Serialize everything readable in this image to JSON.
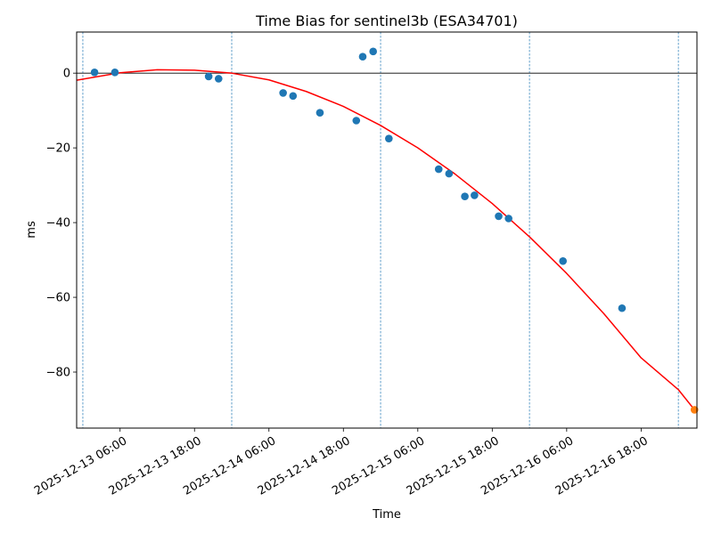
{
  "chart_data": {
    "type": "scatter",
    "title": "Time Bias for sentinel3b (ESA34701)",
    "xlabel": "Time",
    "ylabel": "ms",
    "x_ticks": [
      "2025-12-13 06:00",
      "2025-12-13 18:00",
      "2025-12-14 06:00",
      "2025-12-14 18:00",
      "2025-12-15 06:00",
      "2025-12-15 18:00",
      "2025-12-16 06:00",
      "2025-12-16 18:00"
    ],
    "y_ticks": [
      "0",
      "−20",
      "−40",
      "−60",
      "−80"
    ],
    "xlim": [
      "2025-12-12 23:00",
      "2025-12-17 03:00"
    ],
    "ylim": [
      -95,
      11
    ],
    "zero_line": true,
    "day_boundaries": [
      "2025-12-13 00:00",
      "2025-12-14 00:00",
      "2025-12-15 00:00",
      "2025-12-16 00:00",
      "2025-12-17 00:00"
    ],
    "series": [
      {
        "color": "#1f77b4",
        "points": [
          {
            "x": "2025-12-13 01:53",
            "y": 0.2
          },
          {
            "x": "2025-12-13 05:10",
            "y": 0.2
          },
          {
            "x": "2025-12-13 20:17",
            "y": -0.9
          },
          {
            "x": "2025-12-13 21:53",
            "y": -1.5
          },
          {
            "x": "2025-12-14 08:17",
            "y": -5.3
          },
          {
            "x": "2025-12-14 09:53",
            "y": -6.1
          },
          {
            "x": "2025-12-14 14:13",
            "y": -10.6
          },
          {
            "x": "2025-12-14 20:05",
            "y": -12.7
          },
          {
            "x": "2025-12-14 21:07",
            "y": 4.4
          },
          {
            "x": "2025-12-14 22:48",
            "y": 5.8
          },
          {
            "x": "2025-12-15 01:20",
            "y": -17.5
          },
          {
            "x": "2025-12-15 09:22",
            "y": -25.7
          },
          {
            "x": "2025-12-15 11:02",
            "y": -26.9
          },
          {
            "x": "2025-12-15 13:35",
            "y": -33.0
          },
          {
            "x": "2025-12-15 15:08",
            "y": -32.7
          },
          {
            "x": "2025-12-15 19:02",
            "y": -38.3
          },
          {
            "x": "2025-12-15 20:38",
            "y": -38.9
          },
          {
            "x": "2025-12-16 05:24",
            "y": -50.3
          },
          {
            "x": "2025-12-16 14:55",
            "y": -62.9
          }
        ]
      },
      {
        "color": "#ff7f0e",
        "points": [
          {
            "x": "2025-12-17 02:36",
            "y": -90.1
          }
        ]
      }
    ],
    "fit": {
      "color": "#ff0000",
      "points": [
        {
          "x": "2025-12-12 23:00",
          "y": -1.9
        },
        {
          "x": "2025-12-13 06:00",
          "y": 0.1
        },
        {
          "x": "2025-12-13 12:00",
          "y": 0.9
        },
        {
          "x": "2025-12-13 18:00",
          "y": 0.8
        },
        {
          "x": "2025-12-14 00:00",
          "y": 0.0
        },
        {
          "x": "2025-12-14 06:00",
          "y": -1.8
        },
        {
          "x": "2025-12-14 12:00",
          "y": -4.9
        },
        {
          "x": "2025-12-14 18:00",
          "y": -8.9
        },
        {
          "x": "2025-12-15 00:00",
          "y": -14.0
        },
        {
          "x": "2025-12-15 06:00",
          "y": -20.0
        },
        {
          "x": "2025-12-15 12:00",
          "y": -27.0
        },
        {
          "x": "2025-12-15 18:00",
          "y": -34.9
        },
        {
          "x": "2025-12-16 00:00",
          "y": -43.8
        },
        {
          "x": "2025-12-16 06:00",
          "y": -53.6
        },
        {
          "x": "2025-12-16 12:00",
          "y": -64.4
        },
        {
          "x": "2025-12-16 18:00",
          "y": -76.2
        },
        {
          "x": "2025-12-17 00:00",
          "y": -84.7
        },
        {
          "x": "2025-12-17 02:36",
          "y": -90.1
        }
      ]
    }
  }
}
